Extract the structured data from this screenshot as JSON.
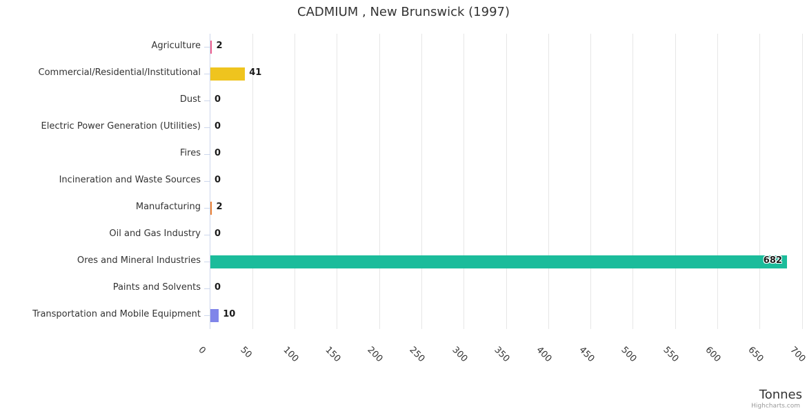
{
  "chart": {
    "credit_label": "Highcharts.com"
  },
  "chart_data": {
    "type": "bar",
    "orientation": "horizontal",
    "title": "CADMIUM , New Brunswick (1997)",
    "xlabel": "Tonnes",
    "ylabel": "",
    "categories": [
      "Agriculture",
      "Commercial/Residential/Institutional",
      "Dust",
      "Electric Power Generation (Utilities)",
      "Fires",
      "Incineration and Waste Sources",
      "Manufacturing",
      "Oil and Gas Industry",
      "Ores and Mineral Industries",
      "Paints and Solvents",
      "Transportation and Mobile Equipment"
    ],
    "values": [
      2,
      41,
      0,
      0,
      0,
      0,
      2,
      0,
      682,
      0,
      10
    ],
    "bar_colors": [
      "#ed5c8c",
      "#efc41e",
      null,
      null,
      null,
      null,
      "#eb7e30",
      null,
      "#1bbc9b",
      null,
      "#8085e9"
    ],
    "xlim": [
      0,
      700
    ],
    "xticks": [
      0,
      50,
      100,
      150,
      200,
      250,
      300,
      350,
      400,
      450,
      500,
      550,
      600,
      650,
      700
    ],
    "grid": true,
    "legend": false,
    "colors": {
      "grid_line": "#e6e6e6",
      "axis_line": "#ccd6eb",
      "title_text": "#333333",
      "label_text": "#333333",
      "data_label_text": "#1a1a1a",
      "credit_text": "#999999"
    }
  }
}
